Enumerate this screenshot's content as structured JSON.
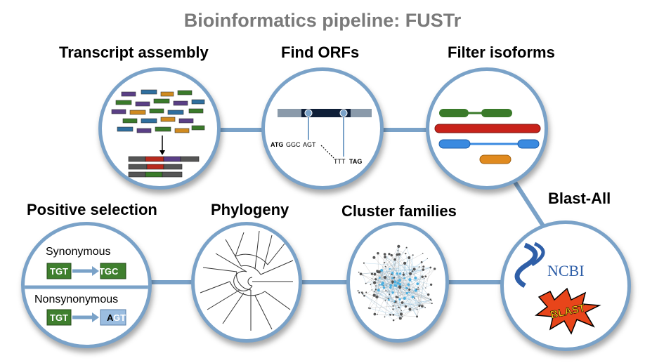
{
  "title": "Bioinformatics pipeline: FUSTr",
  "steps": {
    "transcript": "Transcript assembly",
    "orfs": "Find ORFs",
    "filter": "Filter isoforms",
    "blast": "Blast-All",
    "cluster": "Cluster families",
    "phylogeny": "Phylogeny",
    "selection": "Positive selection"
  },
  "orf": {
    "start": "ATG",
    "codon2": "GGC",
    "codon3": "AGT",
    "codon4": "TTT",
    "stop": "TAG"
  },
  "selection": {
    "synonymous": "Synonymous",
    "nonsynonymous": "Nonsynonymous",
    "syn_from": "TGT",
    "syn_to_a": "TG",
    "syn_to_b": "C",
    "non_from": "TGT",
    "non_to_a": "A",
    "non_to_b": "GT"
  },
  "blast": {
    "ncbi": "NCBI",
    "blast": "BLAST"
  },
  "colors": {
    "connector": "#7aa2c8",
    "title": "#7a7a7a",
    "green_codon": "#3f7f2e",
    "blue_codon": "#9bbde0"
  }
}
